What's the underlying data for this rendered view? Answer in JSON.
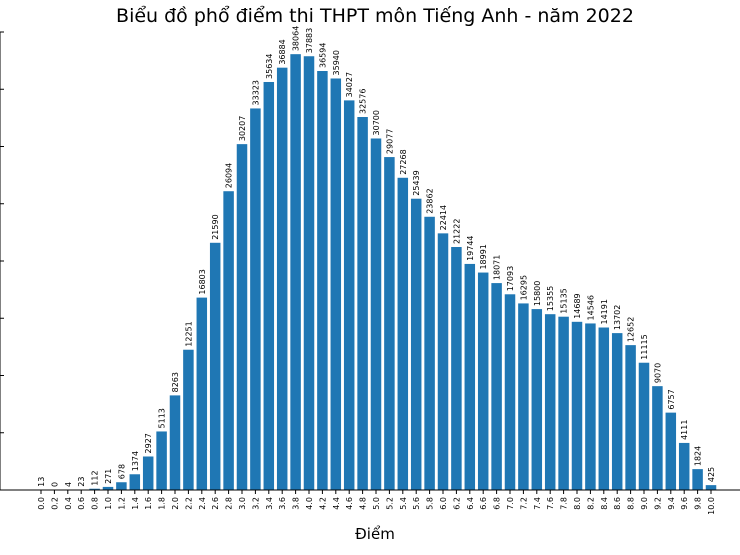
{
  "chart_data": {
    "type": "bar",
    "title": "Biểu đồ phổ điểm thi THPT môn Tiếng Anh - năm 2022",
    "xlabel": "Điểm",
    "ylabel": "",
    "color": "#1f77b4",
    "ylim": [
      0,
      40000
    ],
    "categories": [
      "0.0",
      "0.2",
      "0.4",
      "0.6",
      "0.8",
      "1.0",
      "1.2",
      "1.4",
      "1.6",
      "1.8",
      "2.0",
      "2.2",
      "2.4",
      "2.6",
      "2.8",
      "3.0",
      "3.2",
      "3.4",
      "3.6",
      "3.8",
      "4.0",
      "4.2",
      "4.4",
      "4.6",
      "4.8",
      "5.0",
      "5.2",
      "5.4",
      "5.6",
      "5.8",
      "6.0",
      "6.2",
      "6.4",
      "6.6",
      "6.8",
      "7.0",
      "7.2",
      "7.4",
      "7.6",
      "7.8",
      "8.0",
      "8.2",
      "8.4",
      "8.6",
      "8.8",
      "9.0",
      "9.2",
      "9.4",
      "9.6",
      "9.8",
      "10.0"
    ],
    "values": [
      13,
      0,
      4,
      23,
      112,
      271,
      678,
      1374,
      2927,
      5113,
      8263,
      12251,
      16803,
      21590,
      26094,
      30207,
      33323,
      35634,
      36884,
      38064,
      37883,
      36594,
      35940,
      34027,
      32576,
      30700,
      29077,
      27268,
      25439,
      23862,
      22414,
      21222,
      19744,
      18991,
      18071,
      17093,
      16295,
      15800,
      15355,
      15135,
      14689,
      14546,
      14191,
      13702,
      12652,
      11115,
      9070,
      6757,
      4111,
      1824,
      425
    ]
  }
}
